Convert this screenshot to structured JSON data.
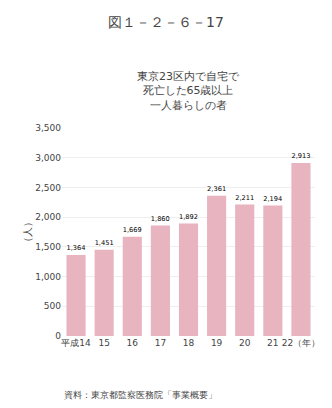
{
  "chart_data": {
    "type": "bar",
    "title": "図１－２－６－17",
    "subtitle": "東京23区内で自宅で\n死亡した65歳以上\n一人暮らしの者",
    "ylabel": "（人）",
    "categories": [
      "平成14",
      "15",
      "16",
      "17",
      "18",
      "19",
      "20",
      "21",
      "22（年）"
    ],
    "values": [
      1364,
      1451,
      1669,
      1860,
      1892,
      2361,
      2211,
      2194,
      2913
    ],
    "value_labels": [
      "1,364",
      "1,451",
      "1,669",
      "1,860",
      "1,892",
      "2,361",
      "2,211",
      "2,194",
      "2,913"
    ],
    "data_labels": true,
    "color": "#e8b4c0",
    "ylim": [
      0,
      3500
    ],
    "yticks": [
      0,
      500,
      {
        "value": 1000,
        "label": "1,000"
      },
      {
        "value": 1500,
        "label": "1,500"
      },
      {
        "value": 2000,
        "label": "2,000"
      },
      {
        "value": 2500,
        "label": "2,500"
      },
      {
        "value": 3000,
        "label": "3,000"
      },
      {
        "value": 3500,
        "label": "3,500"
      }
    ],
    "grid": true,
    "annotations": [
      "資料：東京都監察医務院「事業概要」"
    ]
  }
}
